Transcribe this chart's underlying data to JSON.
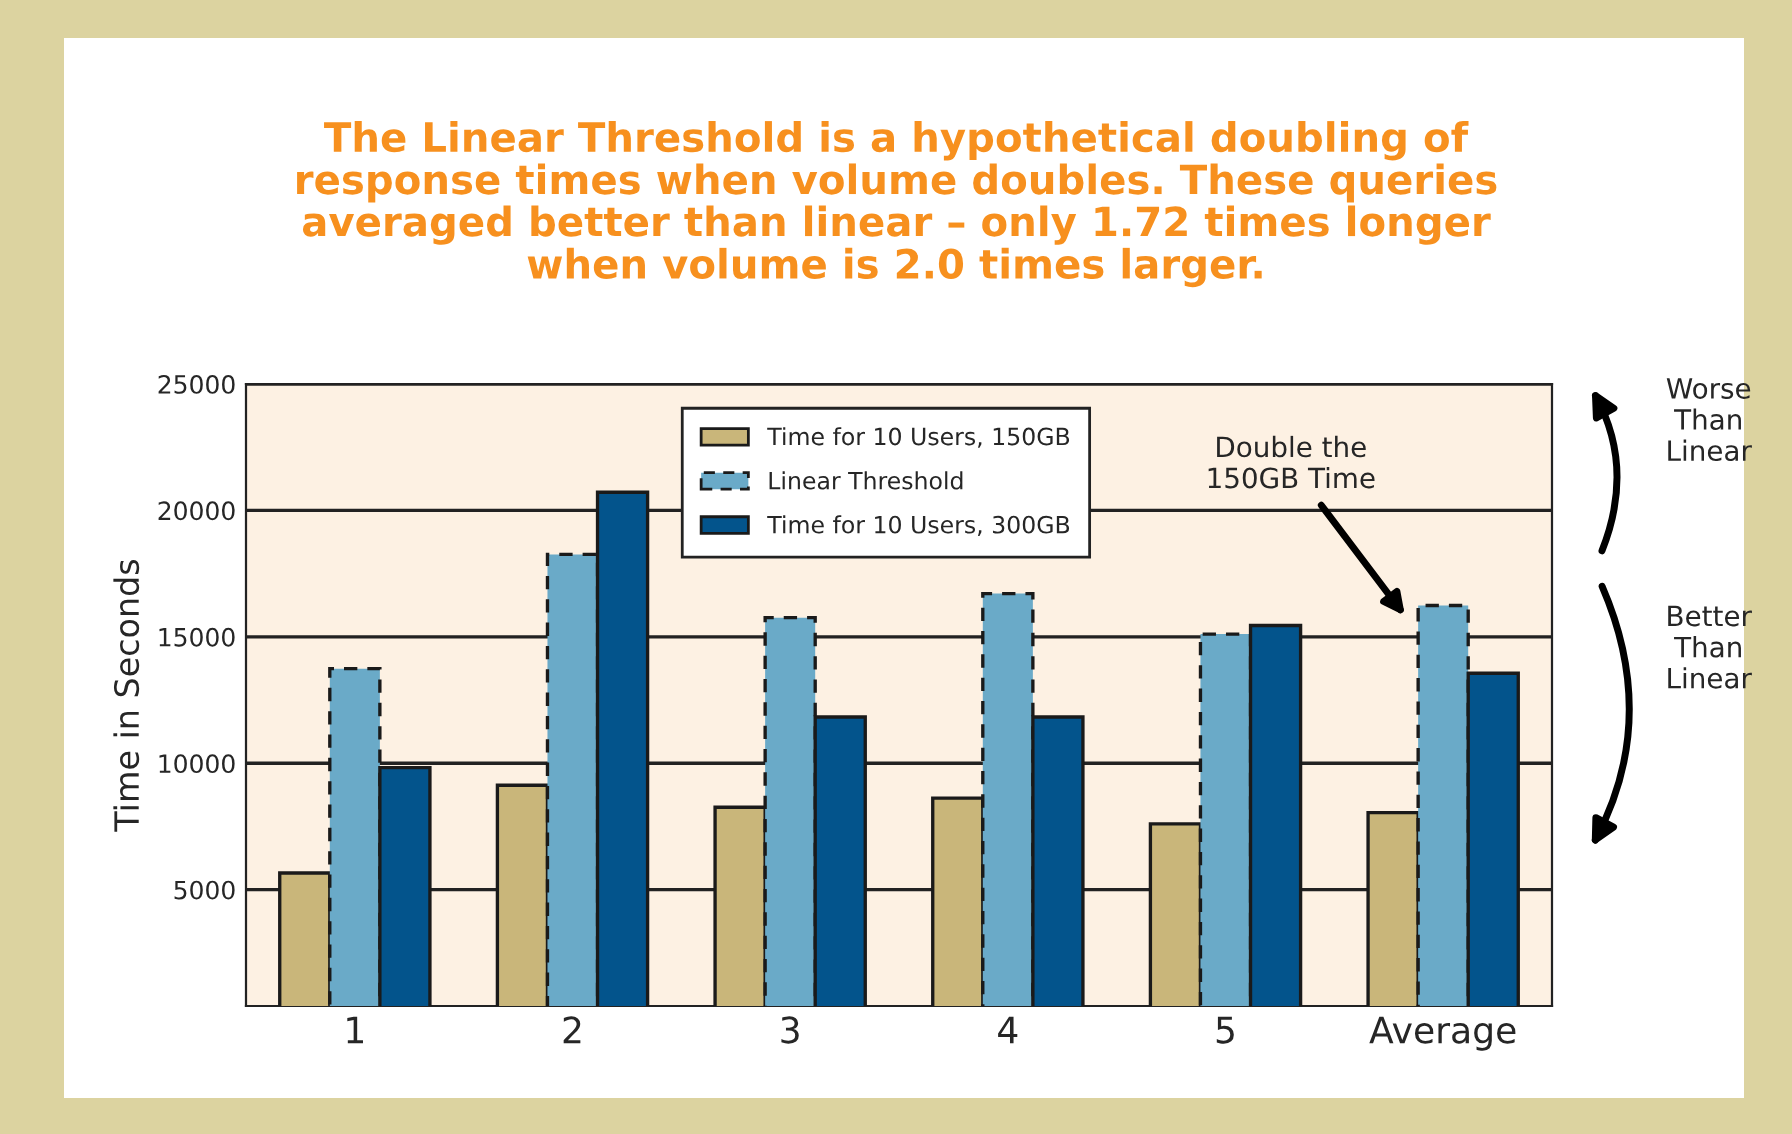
{
  "chart_data": {
    "type": "bar",
    "title": "The Linear Threshold is a hypothetical doubling of\nresponse times when volume doubles. These queries\naveraged better than linear – only 1.72 times longer\nwhen volume is 2.0 times larger.",
    "ylabel": "Time in Seconds",
    "categories": [
      "1",
      "2",
      "3",
      "4",
      "5",
      "Average"
    ],
    "series": [
      {
        "name": "Time for 10 Users, 150GB",
        "color": "#c9b67a",
        "values": [
          5660,
          9130,
          8260,
          8620,
          7600,
          8050
        ]
      },
      {
        "name": "Linear Threshold",
        "color": "#6aaac8",
        "line_style": "dashed",
        "values": [
          13740,
          18260,
          15760,
          16710,
          15110,
          16240
        ]
      },
      {
        "name": "Time for 10 Users, 300GB",
        "color": "#03548c",
        "values": [
          9830,
          20720,
          11830,
          11830,
          15450,
          13560
        ]
      }
    ],
    "ylim": [
      400,
      25000
    ],
    "yticks": [
      5000,
      10000,
      15000,
      20000,
      25000
    ],
    "grid": "y",
    "legend": "top",
    "annotations": [
      "Double the\n150GB Time",
      "Worse\nThan\nLinear",
      "Better\nThan\nLinear"
    ]
  }
}
